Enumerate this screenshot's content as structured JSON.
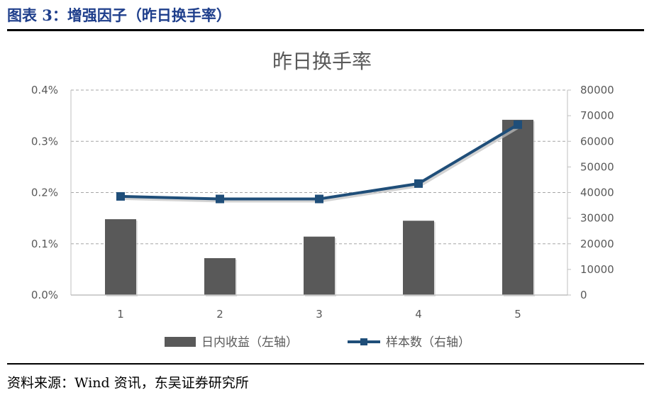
{
  "figure": {
    "title": "图表 3：增强因子（昨日换手率）",
    "source": "资料来源：Wind 资讯，东吴证券研究所"
  },
  "colors": {
    "bar": "#595959",
    "line": "#1f4e79",
    "grid": "#a6a6a6",
    "title_blue": "#1f3f8c"
  },
  "chart_data": {
    "type": "bar",
    "title": "昨日换手率",
    "categories": [
      "1",
      "2",
      "3",
      "4",
      "5"
    ],
    "series": [
      {
        "name": "日内收益（左轴）",
        "type": "bar",
        "axis": "left",
        "values": [
          0.00148,
          0.00072,
          0.00114,
          0.00145,
          0.00342
        ]
      },
      {
        "name": "样本数（右轴）",
        "type": "line",
        "axis": "right",
        "values": [
          38500,
          37500,
          37500,
          43500,
          66500
        ]
      }
    ],
    "y_left": {
      "min": 0,
      "max": 0.004,
      "ticks": [
        "0.0%",
        "0.1%",
        "0.2%",
        "0.3%",
        "0.4%"
      ]
    },
    "y_right": {
      "min": 0,
      "max": 80000,
      "ticks": [
        "0",
        "10000",
        "20000",
        "30000",
        "40000",
        "50000",
        "60000",
        "70000",
        "80000"
      ]
    },
    "grid": "horizontal-dashed",
    "legend": "bottom"
  }
}
